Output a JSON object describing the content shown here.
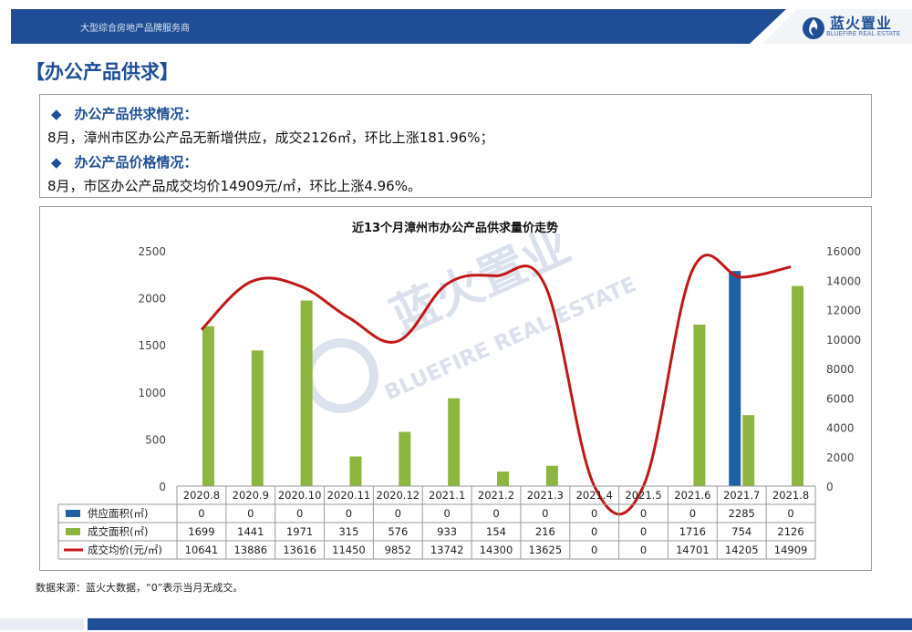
{
  "header": {
    "tagline": "大型综合房地产品牌服务商"
  },
  "logo": {
    "name": "蓝火置业",
    "sub": "BLUEFIRE REAL ESTATE"
  },
  "section": {
    "title": "【办公产品供求】"
  },
  "info": {
    "supply_heading": "办公产品供求情况：",
    "supply_text": "8月，漳州市区办公产品无新增供应，成交2126㎡，环比上涨181.96%；",
    "price_heading": "办公产品价格情况：",
    "price_text": "8月，市区办公产品成交均价14909元/㎡，环比上涨4.96%。"
  },
  "watermark": {
    "cn": "蓝火置业",
    "en": "BLUEFIRE REAL ESTATE"
  },
  "footer": {
    "source": "数据来源：蓝火大数据，“0”表示当月无成交。"
  },
  "colors": {
    "supply": "#1f5fa3",
    "deal": "#8db640",
    "price": "#c01818",
    "brand": "#1f4e96"
  },
  "chart_data": {
    "type": "bar",
    "title": "近13个月漳州市办公产品供求量价走势",
    "categories": [
      "2020.8",
      "2020.9",
      "2020.10",
      "2020.11",
      "2020.12",
      "2021.1",
      "2021.2",
      "2021.3",
      "2021.4",
      "2021.5",
      "2021.6",
      "2021.7",
      "2021.8"
    ],
    "series": [
      {
        "name": "供应面积(㎡)",
        "type": "bar",
        "axis": "left",
        "values": [
          0,
          0,
          0,
          0,
          0,
          0,
          0,
          0,
          0,
          0,
          0,
          2285,
          0
        ]
      },
      {
        "name": "成交面积(㎡)",
        "type": "bar",
        "axis": "left",
        "values": [
          1699,
          1441,
          1971,
          315,
          576,
          933,
          154,
          216,
          0,
          0,
          1716,
          754,
          2126
        ]
      },
      {
        "name": "成交均价(元/㎡)",
        "type": "line",
        "axis": "right",
        "values": [
          10641,
          13886,
          13616,
          11450,
          9852,
          13742,
          14300,
          13625,
          0,
          0,
          14701,
          14205,
          14909
        ]
      }
    ],
    "y_left": {
      "range": [
        0,
        2500
      ],
      "ticks": [
        0,
        500,
        1000,
        1500,
        2000,
        2500
      ]
    },
    "y_right": {
      "range": [
        0,
        16000
      ],
      "ticks": [
        0,
        2000,
        4000,
        6000,
        8000,
        10000,
        12000,
        14000,
        16000
      ]
    },
    "grid": false,
    "legend": "data-table"
  }
}
